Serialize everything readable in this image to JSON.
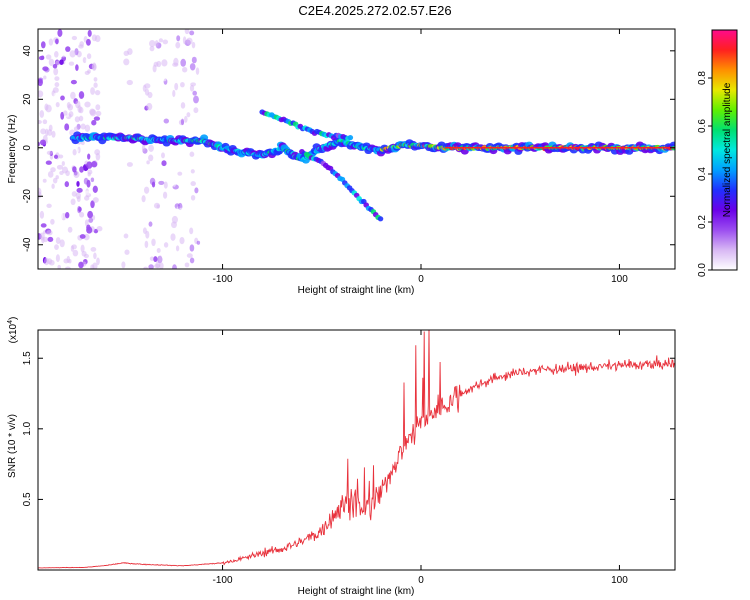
{
  "title": "C2E4.2025.272.02.57.E26",
  "chart_data": [
    {
      "type": "heatmap",
      "name": "spectrogram",
      "xlabel": "Height of straight line (km)",
      "ylabel": "Frequency (Hz)",
      "xlim": [
        -193,
        128
      ],
      "ylim": [
        -50,
        49
      ],
      "x_ticks": [
        -100,
        0,
        100
      ],
      "y_ticks": [
        40,
        20,
        0,
        -20,
        -40
      ],
      "colorbar": {
        "label": "Normalized spectral amplitude",
        "range": [
          0,
          1
        ],
        "ticks": [
          0.0,
          0.2,
          0.4,
          0.6,
          0.8
        ],
        "colors": [
          "#ffffff",
          "#d8b8f4",
          "#9b4df0",
          "#6a00e8",
          "#2030ff",
          "#00a0ff",
          "#00e8e0",
          "#00e070",
          "#60f000",
          "#e8e800",
          "#ff9000",
          "#ff2020",
          "#ff0a8c"
        ]
      },
      "ridges": [
        {
          "name": "main-band",
          "points": [
            [
              -175,
              4
            ],
            [
              -150,
              4
            ],
            [
              -125,
              3
            ],
            [
              -110,
              3
            ],
            [
              -100,
              0
            ],
            [
              -90,
              -2
            ],
            [
              -80,
              -3
            ],
            [
              -70,
              0
            ],
            [
              -60,
              -5
            ],
            [
              -50,
              0
            ],
            [
              -40,
              3
            ],
            [
              -30,
              0
            ],
            [
              -20,
              -1
            ],
            [
              -10,
              1
            ],
            [
              0,
              1
            ],
            [
              10,
              0
            ],
            [
              60,
              0
            ],
            [
              128,
              0
            ]
          ]
        },
        {
          "name": "upper-branch",
          "points": [
            [
              -80,
              15
            ],
            [
              -65,
              10
            ],
            [
              -55,
              7
            ],
            [
              -45,
              5
            ],
            [
              -35,
              4
            ]
          ]
        },
        {
          "name": "lower-branch",
          "points": [
            [
              -60,
              -2
            ],
            [
              -50,
              -6
            ],
            [
              -40,
              -13
            ],
            [
              -30,
              -22
            ],
            [
              -20,
              -30
            ]
          ]
        }
      ]
    },
    {
      "type": "line",
      "name": "snr",
      "xlabel": "Height of straight line (km)",
      "ylabel": "SNR (10 * v/v)",
      "y_multiplier": "(x10",
      "y_exponent": "4",
      "y_multiplier_close": ")",
      "xlim": [
        -193,
        128
      ],
      "ylim": [
        0,
        1.7
      ],
      "x_ticks": [
        -100,
        0,
        100
      ],
      "y_ticks": [
        0.5,
        1.0,
        1.5
      ],
      "color": "#e8323c",
      "envelope": [
        [
          -193,
          0.015
        ],
        [
          -170,
          0.018
        ],
        [
          -160,
          0.03
        ],
        [
          -150,
          0.05
        ],
        [
          -140,
          0.04
        ],
        [
          -120,
          0.03
        ],
        [
          -100,
          0.05
        ],
        [
          -90,
          0.08
        ],
        [
          -80,
          0.12
        ],
        [
          -70,
          0.15
        ],
        [
          -60,
          0.2
        ],
        [
          -50,
          0.28
        ],
        [
          -45,
          0.38
        ],
        [
          -40,
          0.45
        ],
        [
          -35,
          0.5
        ],
        [
          -30,
          0.42
        ],
        [
          -25,
          0.45
        ],
        [
          -20,
          0.55
        ],
        [
          -15,
          0.7
        ],
        [
          -10,
          0.85
        ],
        [
          -5,
          0.95
        ],
        [
          0,
          1.05
        ],
        [
          10,
          1.15
        ],
        [
          20,
          1.25
        ],
        [
          30,
          1.32
        ],
        [
          40,
          1.37
        ],
        [
          50,
          1.4
        ],
        [
          60,
          1.42
        ],
        [
          80,
          1.43
        ],
        [
          100,
          1.45
        ],
        [
          128,
          1.46
        ]
      ]
    }
  ]
}
